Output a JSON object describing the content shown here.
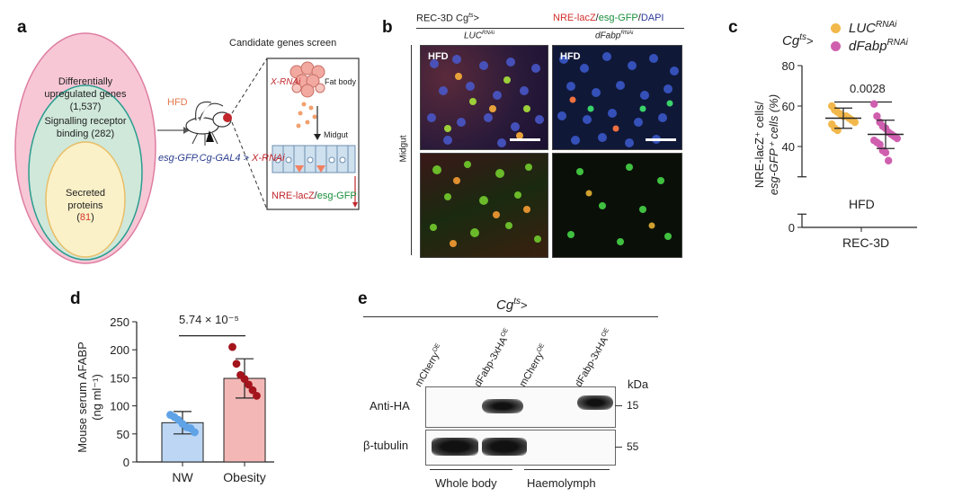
{
  "panels": {
    "a": {
      "letter": "a",
      "venn_outer": "Differentially upregulated genes (1,537)",
      "venn_middle": "Signalling receptor binding (282)",
      "venn_inner_label": "Secreted proteins",
      "venn_inner_count": "81",
      "diet": "HFD",
      "genotype": "esg-GFP,Cg-GAL4 >",
      "rnai": "X-RNAi",
      "screen_title": "Candidate genes screen",
      "box_rnai": "X-RNAi",
      "fat_body": "Fat body",
      "midgut": "Midgut",
      "reporter_red": "NRE-lacZ",
      "reporter_sep": "/",
      "reporter_green": "esg-GFP"
    },
    "b": {
      "letter": "b",
      "header_left": "REC-3D Cg",
      "header_left_sup": "ts",
      "header_left_suffix": ">",
      "header_red": "NRE-lacZ",
      "header_green": "esg-GFP",
      "header_blue": "DAPI",
      "col1": "LUC",
      "col1_sup": "RNAi",
      "col2": "dFabp",
      "col2_sup": "RNAi",
      "row_label": "Midgut",
      "tile_label": "HFD"
    },
    "c": {
      "letter": "c",
      "legend_title": "Cg",
      "legend_title_sup": "ts",
      "legend_title_suffix": ">",
      "legend_items": [
        {
          "label": "LUC",
          "sup": "RNAi",
          "color": "#f2b84b"
        },
        {
          "label": "dFabp",
          "sup": "RNAi",
          "color": "#cf5fae"
        }
      ],
      "pvalue": "0.0028",
      "inner_label": "HFD",
      "xlabel": "REC-3D",
      "ylabel_line1": "NRE-lacZ⁺ cells/",
      "ylabel_line2": "esg-GFP⁺ cells (%)"
    },
    "d": {
      "letter": "d",
      "pvalue": "5.74 × 10⁻⁵",
      "ylabel_line1": "Mouse serum AFABP",
      "ylabel_line2": "(ng ml⁻¹)"
    },
    "e": {
      "letter": "e",
      "header": "Cg",
      "header_sup": "ts",
      "header_suffix": ">",
      "lanes": [
        "mCherry",
        "dFabp-3xHA",
        "mCherry",
        "dFabp-3xHA"
      ],
      "lane_sup": "OE",
      "kda": "kDa",
      "blot1_label": "Anti-HA",
      "blot1_mw": "15",
      "blot2_label": "β-tubulin",
      "blot2_mw": "55",
      "group1": "Whole body",
      "group2": "Haemolymph"
    }
  },
  "chart_data": [
    {
      "type": "scatter",
      "panel": "c",
      "ylim": [
        0,
        80
      ],
      "yticks": [
        0,
        20,
        40,
        60,
        80
      ],
      "ytick_labels": [
        "0",
        "",
        "40",
        "60",
        "80"
      ],
      "series": [
        {
          "name": "LUC RNAi",
          "color": "#f2b84b",
          "mean": 54,
          "sd": 5,
          "values": [
            60,
            58,
            57,
            56,
            55,
            55,
            54,
            53,
            52,
            51,
            49,
            48
          ]
        },
        {
          "name": "dFabp RNAi",
          "color": "#cf5fae",
          "mean": 46,
          "sd": 7,
          "values": [
            61,
            55,
            52,
            50,
            49,
            47,
            46,
            45,
            44,
            43,
            42,
            41,
            38,
            37,
            33
          ]
        }
      ]
    },
    {
      "type": "bar",
      "panel": "d",
      "categories": [
        "NW",
        "Obesity"
      ],
      "values": [
        70,
        149
      ],
      "errors": [
        20,
        35
      ],
      "colors": [
        "#bcd6f4",
        "#f3b8b6"
      ],
      "point_colors": [
        "#5fa2e6",
        "#a4141c"
      ],
      "points": [
        [
          84,
          80,
          75,
          68,
          62,
          60,
          53
        ],
        [
          205,
          175,
          155,
          148,
          138,
          128,
          118
        ]
      ],
      "ylim": [
        0,
        250
      ],
      "yticks": [
        0,
        50,
        100,
        150,
        200,
        250
      ]
    }
  ]
}
